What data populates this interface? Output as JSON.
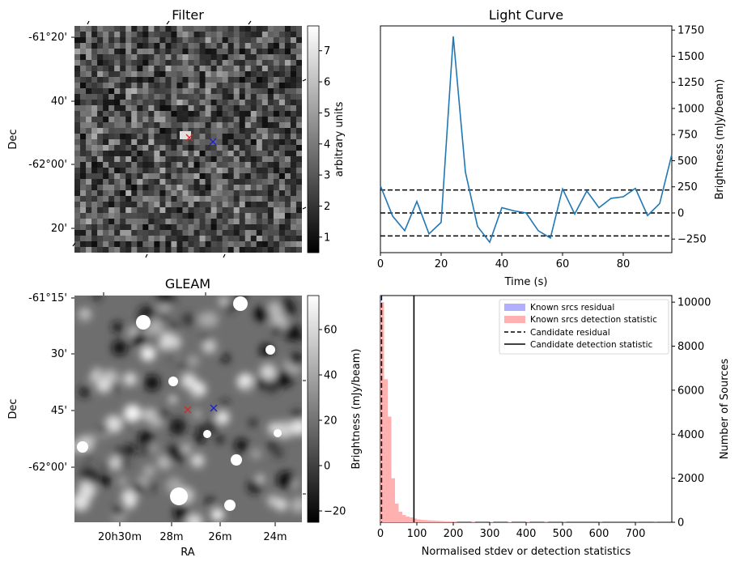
{
  "panels": {
    "filter": {
      "title": "Filter",
      "ylabel": "Dec",
      "yticks": [
        "-61°20'",
        "40'",
        "-62°00'",
        "20'"
      ],
      "colorbar": {
        "label": "arbitrary units",
        "ticks": [
          "1",
          "2",
          "3",
          "4",
          "5",
          "6",
          "7"
        ],
        "range": [
          0.5,
          7.8
        ],
        "cmap": "gray"
      },
      "markers": [
        {
          "color": "#d62728",
          "symbol": "x"
        },
        {
          "color": "#1f1fcc",
          "symbol": "x"
        }
      ]
    },
    "gleam": {
      "title": "GLEAM",
      "xlabel": "RA",
      "ylabel": "Dec",
      "xticks": [
        "20h30m",
        "28m",
        "26m",
        "24m"
      ],
      "yticks": [
        "-61°15'",
        "30'",
        "45'",
        "-62°00'"
      ],
      "colorbar": {
        "ticks": [
          "−20",
          "0",
          "20",
          "40",
          "60"
        ],
        "range": [
          -25,
          75
        ],
        "cmap": "gray"
      },
      "markers": [
        {
          "color": "#d62728",
          "symbol": "x"
        },
        {
          "color": "#1f1fcc",
          "symbol": "x"
        }
      ]
    }
  },
  "chart_data": [
    {
      "type": "line",
      "title": "Light Curve",
      "xlabel": "Time (s)",
      "ylabel": "Brightness (mJy/beam)",
      "xlim": [
        0,
        96
      ],
      "ylim": [
        -380,
        1790
      ],
      "xticks": [
        "0",
        "20",
        "40",
        "60",
        "80"
      ],
      "yticks": [
        "−250",
        "0",
        "250",
        "500",
        "750",
        "1000",
        "1250",
        "1500",
        "1750"
      ],
      "series": [
        {
          "color": "#1f77b4",
          "x": [
            0,
            4,
            8,
            12,
            16,
            20,
            24,
            28,
            32,
            36,
            40,
            44,
            48,
            52,
            56,
            60,
            64,
            68,
            72,
            76,
            80,
            84,
            88,
            92,
            96
          ],
          "y": [
            260,
            -30,
            -170,
            110,
            -200,
            -90,
            1690,
            390,
            -130,
            -280,
            50,
            20,
            0,
            -170,
            -240,
            230,
            -10,
            210,
            50,
            140,
            155,
            235,
            -25,
            90,
            560
          ]
        }
      ],
      "hlines": [
        {
          "y": 0,
          "style": "dashed",
          "color": "#000000"
        },
        {
          "y": 220,
          "style": "dashed",
          "color": "#000000"
        },
        {
          "y": -220,
          "style": "dashed",
          "color": "#000000"
        }
      ]
    },
    {
      "type": "bar",
      "xlabel": "Normalised stdev or detection statistics",
      "ylabel": "Brightness (mJy/beam)",
      "ylabel_right": "Number of Sources",
      "xlim": [
        0,
        800
      ],
      "ylim": [
        0,
        10300
      ],
      "xticks": [
        "0",
        "100",
        "200",
        "300",
        "400",
        "500",
        "600",
        "700"
      ],
      "yticks": [
        "0",
        "2000",
        "4000",
        "6000",
        "8000",
        "10000"
      ],
      "bin_width": 10,
      "series": [
        {
          "name": "Known srcs residual",
          "color": "#b0b0ff",
          "bins": [
            0
          ],
          "counts": [
            10300
          ]
        },
        {
          "name": "Known srcs detection statistic",
          "color": "#ffb0b0",
          "bins": [
            0,
            10,
            20,
            30,
            40,
            50,
            60,
            70,
            80,
            90,
            100,
            110,
            120,
            130,
            140,
            150,
            160,
            170,
            180,
            190,
            200,
            250,
            300,
            350,
            400,
            450,
            500,
            600,
            700,
            750
          ],
          "counts": [
            10000,
            6500,
            4800,
            2000,
            850,
            480,
            330,
            260,
            220,
            170,
            130,
            110,
            100,
            90,
            80,
            70,
            60,
            50,
            45,
            40,
            35,
            30,
            25,
            20,
            15,
            12,
            10,
            8,
            6,
            5
          ]
        }
      ],
      "vlines": [
        {
          "name": "Candidate residual",
          "x": 3,
          "style": "dashed",
          "color": "#000000"
        },
        {
          "name": "Candidate detection statistic",
          "x": 92,
          "style": "solid",
          "color": "#000000"
        }
      ],
      "legend": "top-right"
    }
  ]
}
